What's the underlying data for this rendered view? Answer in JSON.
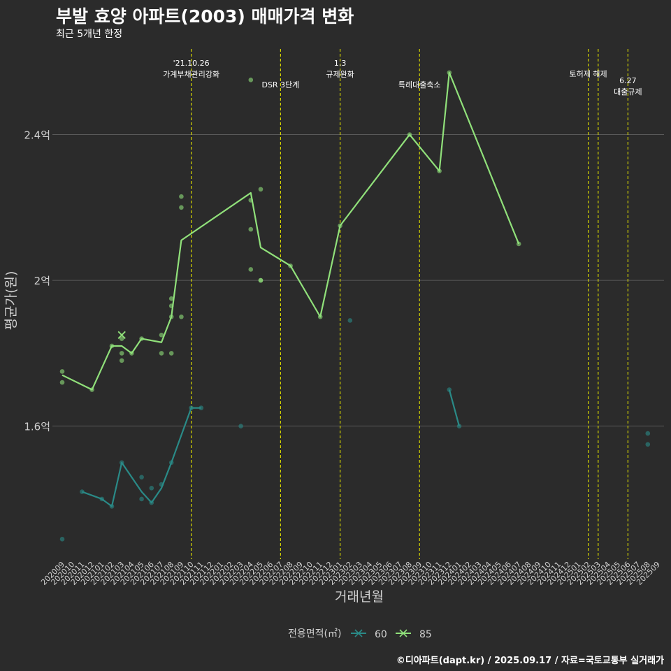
{
  "header": {
    "title": "부발 효양 아파트(2003) 매매가격 변화",
    "subtitle": "최근 5개년 한정"
  },
  "footer": {
    "credit": "©디아파트(dapt.kr) / 2025.09.17 / 자료=국토교통부 실거래가"
  },
  "colors": {
    "background": "#2b2b2b",
    "grid": "#5a5a5a",
    "event_line": "#d4d400",
    "series_60": "#2a8a87",
    "series_85": "#90e07a"
  },
  "chart_data": {
    "type": "line",
    "xlabel": "거래년월",
    "ylabel": "평균가(원)",
    "categories": [
      "202009",
      "202010",
      "202011",
      "202012",
      "202101",
      "202102",
      "202103",
      "202104",
      "202105",
      "202106",
      "202107",
      "202108",
      "202109",
      "202110",
      "202111",
      "202112",
      "202201",
      "202202",
      "202203",
      "202204",
      "202205",
      "202206",
      "202207",
      "202208",
      "202209",
      "202210",
      "202211",
      "202212",
      "202301",
      "202302",
      "202303",
      "202304",
      "202305",
      "202306",
      "202307",
      "202308",
      "202309",
      "202310",
      "202311",
      "202312",
      "202401",
      "202402",
      "202403",
      "202404",
      "202405",
      "202406",
      "202407",
      "202408",
      "202409",
      "202410",
      "202411",
      "202412",
      "202501",
      "202502",
      "202503",
      "202504",
      "202505",
      "202506",
      "202507",
      "202508",
      "202509"
    ],
    "ylim": [
      1.235,
      2.635
    ],
    "y_ticks": [
      {
        "value": 1.6,
        "label": "1.6억"
      },
      {
        "value": 2.0,
        "label": "2억"
      },
      {
        "value": 2.4,
        "label": "2.4억"
      }
    ],
    "legend": {
      "title": "전용면적(㎡)",
      "position": "bottom",
      "entries": [
        "60",
        "85"
      ]
    },
    "series": [
      {
        "name": "60",
        "color": "#2a8a87",
        "lines": [
          [
            [
              "202011",
              1.42
            ],
            [
              "202101",
              1.4
            ],
            [
              "202102",
              1.38
            ],
            [
              "202103",
              1.5
            ],
            [
              "202105",
              1.42
            ],
            [
              "202106",
              1.39
            ],
            [
              "202107",
              1.43
            ],
            [
              "202108",
              1.5
            ],
            [
              "202110",
              1.65
            ],
            [
              "202111",
              1.65
            ]
          ],
          [
            [
              "202312",
              1.7
            ],
            [
              "202401",
              1.6
            ]
          ]
        ],
        "points": [
          [
            "202009",
            1.29
          ],
          [
            "202011",
            1.42
          ],
          [
            "202101",
            1.4
          ],
          [
            "202102",
            1.38
          ],
          [
            "202103",
            1.5
          ],
          [
            "202105",
            1.46
          ],
          [
            "202105",
            1.4
          ],
          [
            "202106",
            1.43
          ],
          [
            "202106",
            1.39
          ],
          [
            "202107",
            1.44
          ],
          [
            "202108",
            1.5
          ],
          [
            "202110",
            1.65
          ],
          [
            "202111",
            1.65
          ],
          [
            "202203",
            1.6
          ],
          [
            "202302",
            1.89
          ],
          [
            "202312",
            1.7
          ],
          [
            "202401",
            1.6
          ],
          [
            "202508",
            1.58
          ],
          [
            "202508",
            1.55
          ]
        ]
      },
      {
        "name": "85",
        "color": "#90e07a",
        "lines": [
          [
            [
              "202009",
              1.74
            ],
            [
              "202012",
              1.7
            ],
            [
              "202102",
              1.82
            ],
            [
              "202103",
              1.82
            ],
            [
              "202104",
              1.8
            ],
            [
              "202105",
              1.84
            ],
            [
              "202107",
              1.83
            ],
            [
              "202108",
              1.9
            ],
            [
              "202109",
              2.11
            ],
            [
              "202204",
              2.24
            ],
            [
              "202205",
              2.09
            ],
            [
              "202208",
              2.04
            ],
            [
              "202211",
              1.9
            ],
            [
              "202301",
              2.15
            ],
            [
              "202308",
              2.4
            ],
            [
              "202311",
              2.3
            ],
            [
              "202312",
              2.57
            ],
            [
              "202407",
              2.1
            ]
          ]
        ],
        "points": [
          [
            "202009",
            1.75
          ],
          [
            "202009",
            1.72
          ],
          [
            "202012",
            1.7
          ],
          [
            "202102",
            1.82
          ],
          [
            "202103",
            1.84
          ],
          [
            "202103",
            1.8
          ],
          [
            "202103",
            1.78
          ],
          [
            "202104",
            1.8
          ],
          [
            "202105",
            1.84
          ],
          [
            "202107",
            1.85
          ],
          [
            "202107",
            1.8
          ],
          [
            "202108",
            1.95
          ],
          [
            "202108",
            1.93
          ],
          [
            "202108",
            1.9
          ],
          [
            "202108",
            1.8
          ],
          [
            "202109",
            2.23
          ],
          [
            "202109",
            2.2
          ],
          [
            "202109",
            1.9
          ],
          [
            "202204",
            2.55
          ],
          [
            "202204",
            2.22
          ],
          [
            "202204",
            2.14
          ],
          [
            "202204",
            2.03
          ],
          [
            "202205",
            2.25
          ],
          [
            "202205",
            2.0
          ],
          [
            "202205",
            2.0
          ],
          [
            "202208",
            2.04
          ],
          [
            "202211",
            1.9
          ],
          [
            "202301",
            2.15
          ],
          [
            "202308",
            2.4
          ],
          [
            "202311",
            2.3
          ],
          [
            "202312",
            2.57
          ],
          [
            "202407",
            2.1
          ]
        ],
        "cross_points": [
          [
            "202103",
            1.85
          ]
        ]
      }
    ],
    "events": [
      {
        "month": "202110",
        "labels": [
          "'21.10.26",
          "가계부채관리강화"
        ],
        "label_row": 0
      },
      {
        "month": "202207",
        "labels": [
          "DSR 3단계"
        ],
        "label_row": 2
      },
      {
        "month": "202301",
        "labels": [
          "1.3",
          "규제완화"
        ],
        "label_row": 0
      },
      {
        "month": "202309",
        "labels": [
          "특례대출축소"
        ],
        "label_row": 2
      },
      {
        "month": "202502",
        "labels": [
          "토허제 해제"
        ],
        "label_row": 1
      },
      {
        "month": "202503",
        "labels": [],
        "label_row": 0
      },
      {
        "month": "202506",
        "labels": [
          "6.27",
          "대출규제"
        ],
        "label_row": 1.6
      }
    ]
  }
}
